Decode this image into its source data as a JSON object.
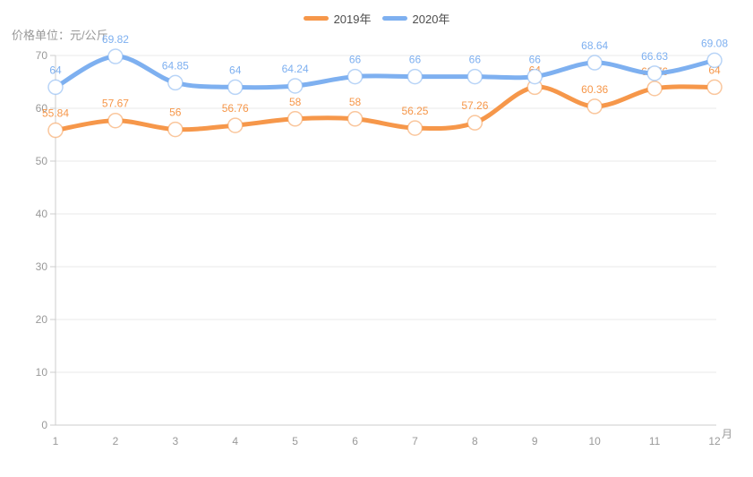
{
  "colors": {
    "axis": "#cccccc",
    "grid": "#e9e9e9",
    "tick_text": "#999999",
    "legend_text": "#4d4d4d",
    "marker_fill": "#ffffff",
    "series_2019": "#f6974a",
    "series_2020": "#7eb0f0"
  },
  "header": {
    "unit_label": "价格单位：元/公斤"
  },
  "chart_data": {
    "type": "line",
    "title": "",
    "ylabel": "价格单位：元/公斤",
    "xlabel": "月",
    "categories": [
      "1",
      "2",
      "3",
      "4",
      "5",
      "6",
      "7",
      "8",
      "9",
      "10",
      "11",
      "12"
    ],
    "yticks": [
      0,
      10,
      20,
      30,
      40,
      50,
      60,
      70
    ],
    "ylim": [
      0,
      70
    ],
    "grid": true,
    "smooth": true,
    "legend_position": "top-center",
    "series": [
      {
        "name": "2019年",
        "color": "#f6974a",
        "values": [
          55.84,
          57.67,
          56,
          56.76,
          58,
          58,
          56.25,
          57.26,
          64,
          60.36,
          63.76,
          64
        ],
        "point_labels": [
          "55.84",
          "57.67",
          "56",
          "56.76",
          "58",
          "58",
          "56.25",
          "57.26",
          "64",
          "60.36",
          "63.76",
          "64"
        ]
      },
      {
        "name": "2020年",
        "color": "#7eb0f0",
        "values": [
          64,
          69.82,
          64.85,
          64,
          64.24,
          66,
          66,
          66,
          66,
          68.64,
          66.63,
          69.08
        ],
        "point_labels": [
          "64",
          "69.82",
          "64.85",
          "64",
          "64.24",
          "66",
          "66",
          "66",
          "66",
          "68.64",
          "66.63",
          "69.08"
        ]
      }
    ]
  }
}
